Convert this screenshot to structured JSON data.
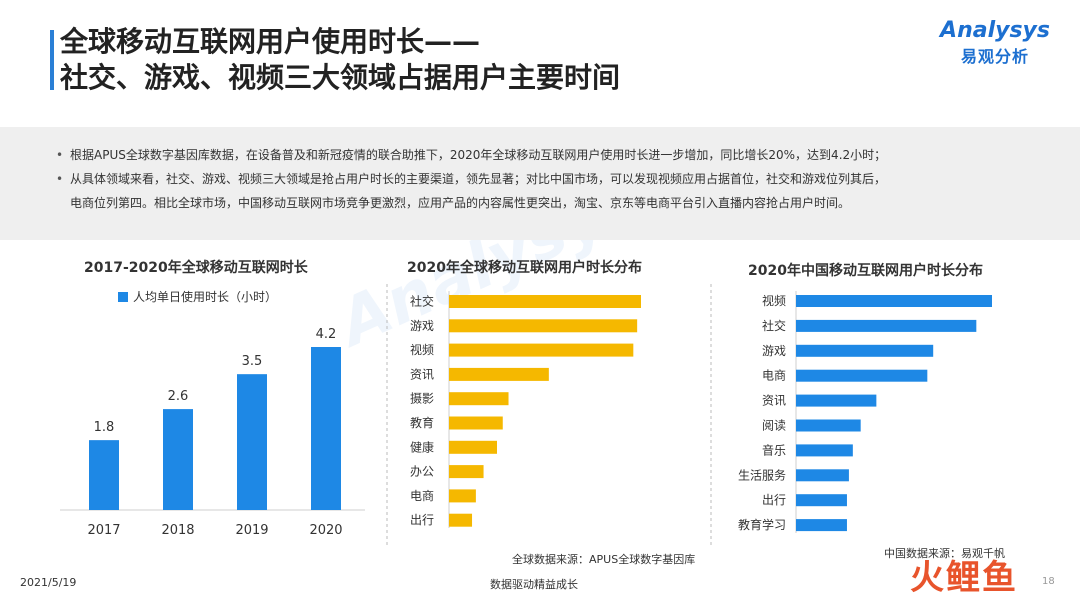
{
  "header": {
    "title_line1": "全球移动互联网用户使用时长——",
    "title_line2": "社交、游戏、视频三大领域占据用户主要时间",
    "logo_en": "Analysys",
    "logo_cn": "易观分析"
  },
  "summary": {
    "bullet1": "根据APUS全球数字基因库数据，在设备普及和新冠疫情的联合助推下，2020年全球移动互联网用户使用时长进一步增加，同比增长20%，达到4.2小时；",
    "bullet2_line1": "从具体领域来看，社交、游戏、视频三大领域是抢占用户时长的主要渠道，领先显著；对比中国市场，可以发现视频应用占据首位，社交和游戏位列其后，",
    "bullet2_line2": "电商位列第四。相比全球市场，中国移动互联网市场竞争更激烈，应用产品的内容属性更突出，淘宝、京东等电商平台引入直播内容抢占用户时间。"
  },
  "chart_data": [
    {
      "type": "bar",
      "title": "2017-2020年全球移动互联网时长",
      "categories": [
        "2017",
        "2018",
        "2019",
        "2020"
      ],
      "series": [
        {
          "name": "人均单日使用时长（小时）",
          "values": [
            1.8,
            2.6,
            3.5,
            4.2
          ],
          "labels": [
            "1.8",
            "2.6",
            "3.5",
            "4.2"
          ]
        }
      ],
      "ylim": [
        0,
        4.2
      ],
      "color": "#1e88e5"
    },
    {
      "type": "bar",
      "orientation": "horizontal",
      "title": "2020年全球移动互联网用户时长分布",
      "categories": [
        "社交",
        "游戏",
        "视频",
        "资讯",
        "摄影",
        "教育",
        "健康",
        "办公",
        "电商",
        "出行"
      ],
      "values": [
        100,
        98,
        96,
        52,
        31,
        28,
        25,
        18,
        14,
        12
      ],
      "color": "#f5b800"
    },
    {
      "type": "bar",
      "orientation": "horizontal",
      "title": "2020年中国移动互联网用户时长分布",
      "categories": [
        "视频",
        "社交",
        "游戏",
        "电商",
        "资讯",
        "阅读",
        "音乐",
        "生活服务",
        "出行",
        "教育学习"
      ],
      "values": [
        100,
        92,
        70,
        67,
        41,
        33,
        29,
        27,
        26,
        26
      ],
      "color": "#1e88e5"
    }
  ],
  "sources": {
    "global": "全球数据来源：APUS全球数字基因库",
    "china": "中国数据来源：易观千帆"
  },
  "footer": {
    "date": "2021/5/19",
    "slogan": "数据驱动精益成长",
    "page": "18",
    "brand": "火鲤鱼"
  }
}
